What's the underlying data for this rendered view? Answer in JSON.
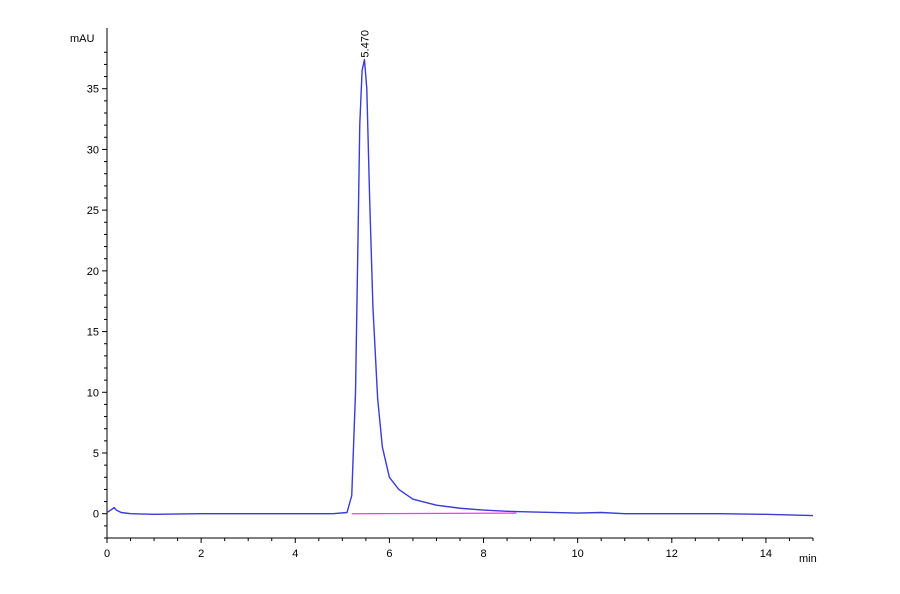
{
  "chart_data": {
    "type": "line",
    "title": "",
    "xlabel": "min",
    "ylabel": "mAU",
    "xlim": [
      0,
      15
    ],
    "ylim": [
      -2,
      40
    ],
    "x_ticks": [
      0,
      2,
      4,
      6,
      8,
      10,
      12,
      14
    ],
    "y_ticks": [
      0,
      5,
      10,
      15,
      20,
      25,
      30,
      35
    ],
    "grid": false,
    "colors": {
      "signal": "#3b3bd8",
      "baseline": "#ff33ff",
      "axis": "#000000"
    },
    "peak": {
      "label": "5.470",
      "x": 5.47,
      "y": 37.4
    },
    "series": [
      {
        "x": [
          0,
          0.08,
          0.15,
          0.2,
          0.3,
          0.5,
          1,
          2,
          3,
          4,
          4.8,
          5.1,
          5.2,
          5.28,
          5.33,
          5.37,
          5.42,
          5.47,
          5.52,
          5.58,
          5.65,
          5.75,
          5.85,
          6.0,
          6.2,
          6.5,
          7.0,
          7.5,
          8.0,
          8.5,
          9,
          10,
          10.5,
          11,
          12,
          13,
          14,
          15
        ],
        "y": [
          0.1,
          0.3,
          0.5,
          0.3,
          0.1,
          0.0,
          -0.05,
          0.0,
          0.0,
          0.0,
          0.0,
          0.1,
          1.5,
          10.0,
          22.0,
          32.0,
          36.5,
          37.4,
          35.0,
          26.0,
          17.0,
          9.5,
          5.5,
          3.0,
          2.0,
          1.2,
          0.7,
          0.45,
          0.3,
          0.2,
          0.15,
          0.05,
          0.1,
          0.0,
          0.0,
          0.0,
          -0.05,
          -0.15
        ]
      },
      {
        "x": [
          5.2,
          8.7
        ],
        "y": [
          0.0,
          0.05
        ]
      }
    ]
  }
}
